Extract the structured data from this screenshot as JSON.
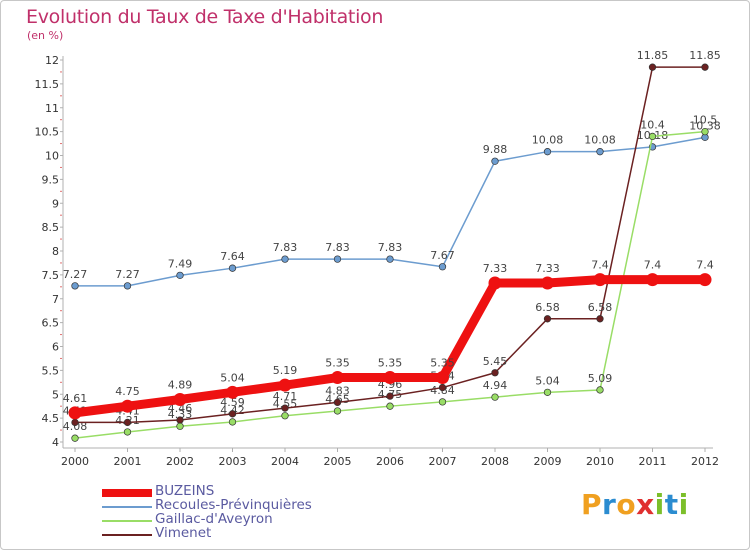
{
  "title": "Evolution du Taux de Taxe d'Habitation",
  "unit": "(en %)",
  "brand": "Proxiti",
  "chart_data": {
    "type": "line",
    "title": "Evolution du Taux de Taxe d'Habitation",
    "ylabel": "(en %)",
    "x": [
      "2000",
      "2001",
      "2002",
      "2003",
      "2004",
      "2005",
      "2006",
      "2007",
      "2008",
      "2009",
      "2010",
      "2011",
      "2012"
    ],
    "yticks": [
      "4",
      "4.5",
      "5",
      "5.5",
      "6",
      "6.5",
      "7",
      "7.5",
      "8",
      "8.5",
      "9",
      "9.5",
      "10",
      "10.5",
      "11",
      "11.5",
      "12"
    ],
    "ylim": [
      4,
      12
    ],
    "grid": false,
    "legend_position": "bottom-left",
    "series": [
      {
        "name": "BUZEINS",
        "color": "#ee1111",
        "values": [
          4.61,
          4.75,
          4.89,
          5.04,
          5.19,
          5.35,
          5.35,
          5.35,
          7.33,
          7.33,
          7.4,
          7.4,
          7.4
        ],
        "labels": [
          "4.61",
          "4.75",
          "4.89",
          "5.04",
          "5.19",
          "5.35",
          "5.35",
          "5.35",
          "7.33",
          "7.33",
          "7.4",
          "7.4",
          "7.4"
        ]
      },
      {
        "name": "Recoules-Prévinquières",
        "color": "#6c9ccf",
        "values": [
          7.27,
          7.27,
          7.49,
          7.64,
          7.83,
          7.83,
          7.83,
          7.67,
          9.88,
          10.08,
          10.08,
          10.18,
          10.38
        ],
        "labels": [
          "7.27",
          "7.27",
          "7.49",
          "7.64",
          "7.83",
          "7.83",
          "7.83",
          "7.67",
          "9.88",
          "10.08",
          "10.08",
          "10.18",
          "10.38"
        ]
      },
      {
        "name": "Gaillac-d'Aveyron",
        "color": "#99dd66",
        "values": [
          4.08,
          4.21,
          4.33,
          4.42,
          4.55,
          4.65,
          4.75,
          4.84,
          4.94,
          5.04,
          5.09,
          10.4,
          10.5
        ],
        "labels": [
          "4.08",
          "4.21",
          "4.33",
          "4.42",
          "4.55",
          "4.65",
          "4.75",
          "4.84",
          "4.94",
          "5.04",
          "5.09",
          "10.4",
          "10.5"
        ]
      },
      {
        "name": "Vimenet",
        "color": "#6b2121",
        "values": [
          4.41,
          4.41,
          4.46,
          4.59,
          4.71,
          4.83,
          4.96,
          5.14,
          5.45,
          6.58,
          6.58,
          11.85,
          11.85
        ],
        "labels": [
          "4.41",
          "4.41",
          "4.46",
          "4.59",
          "4.71",
          "4.83",
          "4.96",
          "5.14",
          "5.45",
          "6.58",
          "6.58",
          "11.85",
          "11.85"
        ]
      }
    ]
  }
}
